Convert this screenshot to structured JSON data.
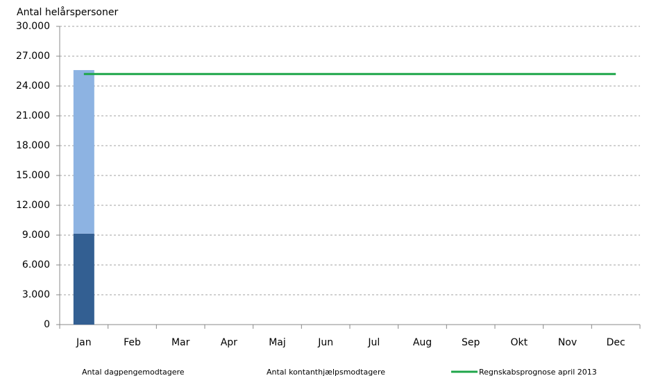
{
  "chart_data": {
    "type": "bar",
    "stacked": true,
    "y_label": "Antal helårspersoner",
    "categories": [
      "Jan",
      "Feb",
      "Mar",
      "Apr",
      "Maj",
      "Jun",
      "Jul",
      "Aug",
      "Sep",
      "Okt",
      "Nov",
      "Dec"
    ],
    "series": [
      {
        "name": "Antal dagpengemodtagere",
        "color": "#335f92",
        "values": [
          9150,
          null,
          null,
          null,
          null,
          null,
          null,
          null,
          null,
          null,
          null,
          null
        ]
      },
      {
        "name": "Antal kontanthjælpsmodtagere",
        "color": "#8db3e2",
        "values": [
          16450,
          null,
          null,
          null,
          null,
          null,
          null,
          null,
          null,
          null,
          null,
          null
        ]
      },
      {
        "name": "Regnskabsprognose april 2013",
        "color": "#1fa64a",
        "type": "line",
        "values": [
          25200,
          25200,
          25200,
          25200,
          25200,
          25200,
          25200,
          25200,
          25200,
          25200,
          25200,
          25200
        ]
      }
    ],
    "ylim": [
      0,
      30000
    ],
    "yticks": [
      0,
      {
        "value": 3000,
        "label": "3.000"
      },
      {
        "value": 6000,
        "label": "6.000"
      },
      {
        "value": 9000,
        "label": "9.000"
      },
      {
        "value": 12000,
        "label": "12.000"
      },
      {
        "value": 15000,
        "label": "15.000"
      },
      {
        "value": 18000,
        "label": "18.000"
      },
      {
        "value": 21000,
        "label": "21.000"
      },
      {
        "value": 24000,
        "label": "24.000"
      },
      {
        "value": 27000,
        "label": "27.000"
      },
      {
        "value": 30000,
        "label": "30.000"
      }
    ],
    "grid": true,
    "legend": "bottom"
  }
}
